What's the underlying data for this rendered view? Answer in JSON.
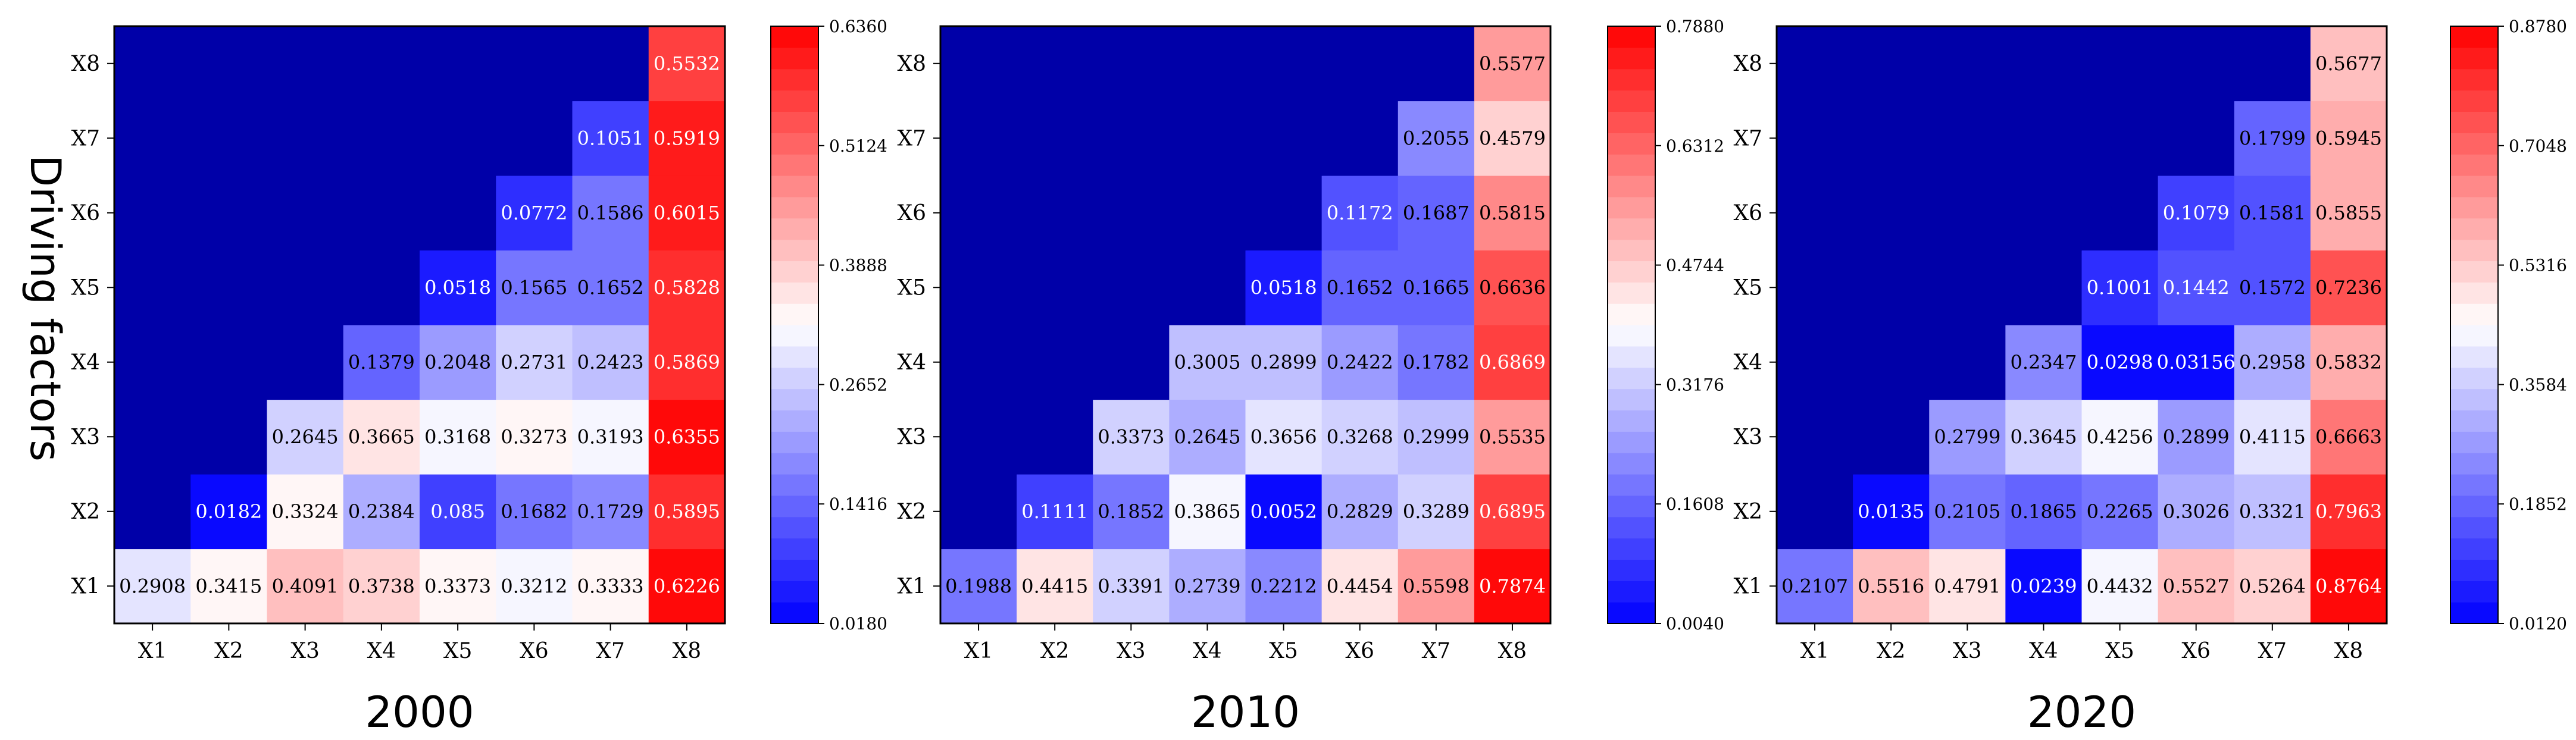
{
  "figure": {
    "ylabel": "Driving factors",
    "masked_cell_color": "#0000a8",
    "colormap": {
      "low": "#0000ff",
      "mid": "#ffffff",
      "high": "#ff0000",
      "levels": 28
    }
  },
  "chart_data": [
    {
      "type": "heatmap",
      "title": "2000",
      "xlabel": "",
      "ylabel": "Driving factors",
      "x_categories": [
        "X1",
        "X2",
        "X3",
        "X4",
        "X5",
        "X6",
        "X7",
        "X8"
      ],
      "y_categories": [
        "X1",
        "X2",
        "X3",
        "X4",
        "X5",
        "X6",
        "X7",
        "X8"
      ],
      "values": [
        [
          0.2908,
          0.3415,
          0.4091,
          0.3738,
          0.3373,
          0.3212,
          0.3333,
          0.6226
        ],
        [
          null,
          0.0182,
          0.3324,
          0.2384,
          0.085,
          0.1682,
          0.1729,
          0.5895
        ],
        [
          null,
          null,
          0.2645,
          0.3665,
          0.3168,
          0.3273,
          0.3193,
          0.6355
        ],
        [
          null,
          null,
          null,
          0.1379,
          0.2048,
          0.2731,
          0.2423,
          0.5869
        ],
        [
          null,
          null,
          null,
          null,
          0.0518,
          0.1565,
          0.1652,
          0.5828
        ],
        [
          null,
          null,
          null,
          null,
          null,
          0.0772,
          0.1586,
          0.6015
        ],
        [
          null,
          null,
          null,
          null,
          null,
          null,
          0.1051,
          0.5919
        ],
        [
          null,
          null,
          null,
          null,
          null,
          null,
          null,
          0.5532
        ]
      ],
      "labels": [
        [
          "0.2908",
          "0.3415",
          "0.4091",
          "0.3738",
          "0.3373",
          "0.3212",
          "0.3333",
          "0.6226"
        ],
        [
          null,
          "0.0182",
          "0.3324",
          "0.2384",
          "0.085",
          "0.1682",
          "0.1729",
          "0.5895"
        ],
        [
          null,
          null,
          "0.2645",
          "0.3665",
          "0.3168",
          "0.3273",
          "0.3193",
          "0.6355"
        ],
        [
          null,
          null,
          null,
          "0.1379",
          "0.2048",
          "0.2731",
          "0.2423",
          "0.5869"
        ],
        [
          null,
          null,
          null,
          null,
          "0.0518",
          "0.1565",
          "0.1652",
          "0.5828"
        ],
        [
          null,
          null,
          null,
          null,
          null,
          "0.0772",
          "0.1586",
          "0.6015"
        ],
        [
          null,
          null,
          null,
          null,
          null,
          null,
          "0.1051",
          "0.5919"
        ],
        [
          null,
          null,
          null,
          null,
          null,
          null,
          null,
          "0.5532"
        ]
      ],
      "colorbar": {
        "min": 0.018,
        "max": 0.636,
        "ticks": [
          "0.0180",
          "0.1416",
          "0.2652",
          "0.3888",
          "0.5124",
          "0.6360"
        ]
      }
    },
    {
      "type": "heatmap",
      "title": "2010",
      "xlabel": "",
      "ylabel": "",
      "x_categories": [
        "X1",
        "X2",
        "X3",
        "X4",
        "X5",
        "X6",
        "X7",
        "X8"
      ],
      "y_categories": [
        "X1",
        "X2",
        "X3",
        "X4",
        "X5",
        "X6",
        "X7",
        "X8"
      ],
      "values": [
        [
          0.1988,
          0.4415,
          0.3391,
          0.2739,
          0.2212,
          0.4454,
          0.5598,
          0.7874
        ],
        [
          null,
          0.1111,
          0.1852,
          0.3865,
          0.0052,
          0.2829,
          0.3289,
          0.6895
        ],
        [
          null,
          null,
          0.3373,
          0.2645,
          0.3656,
          0.3268,
          0.2999,
          0.5535
        ],
        [
          null,
          null,
          null,
          0.3005,
          0.2899,
          0.2422,
          0.1782,
          0.6869
        ],
        [
          null,
          null,
          null,
          null,
          0.0518,
          0.1652,
          0.1665,
          0.6636
        ],
        [
          null,
          null,
          null,
          null,
          null,
          0.1172,
          0.1687,
          0.5815
        ],
        [
          null,
          null,
          null,
          null,
          null,
          null,
          0.2055,
          0.4579
        ],
        [
          null,
          null,
          null,
          null,
          null,
          null,
          null,
          0.5577
        ]
      ],
      "labels": [
        [
          "0.1988",
          "0.4415",
          "0.3391",
          "0.2739",
          "0.2212",
          "0.4454",
          "0.5598",
          "0.7874"
        ],
        [
          null,
          "0.1111",
          "0.1852",
          "0.3865",
          "0.0052",
          "0.2829",
          "0.3289",
          "0.6895"
        ],
        [
          null,
          null,
          "0.3373",
          "0.2645",
          "0.3656",
          "0.3268",
          "0.2999",
          "0.5535"
        ],
        [
          null,
          null,
          null,
          "0.3005",
          "0.2899",
          "0.2422",
          "0.1782",
          "0.6869"
        ],
        [
          null,
          null,
          null,
          null,
          "0.0518",
          "0.1652",
          "0.1665",
          "0.6636"
        ],
        [
          null,
          null,
          null,
          null,
          null,
          "0.1172",
          "0.1687",
          "0.5815"
        ],
        [
          null,
          null,
          null,
          null,
          null,
          null,
          "0.2055",
          "0.4579"
        ],
        [
          null,
          null,
          null,
          null,
          null,
          null,
          null,
          "0.5577"
        ]
      ],
      "colorbar": {
        "min": 0.004,
        "max": 0.788,
        "ticks": [
          "0.0040",
          "0.1608",
          "0.3176",
          "0.4744",
          "0.6312",
          "0.7880"
        ]
      }
    },
    {
      "type": "heatmap",
      "title": "2020",
      "xlabel": "",
      "ylabel": "",
      "x_categories": [
        "X1",
        "X2",
        "X3",
        "X4",
        "X5",
        "X6",
        "X7",
        "X8"
      ],
      "y_categories": [
        "X1",
        "X2",
        "X3",
        "X4",
        "X5",
        "X6",
        "X7",
        "X8"
      ],
      "values": [
        [
          0.2107,
          0.5516,
          0.4791,
          0.0239,
          0.4432,
          0.5527,
          0.5264,
          0.8764
        ],
        [
          null,
          0.0135,
          0.2105,
          0.1865,
          0.2265,
          0.3026,
          0.3321,
          0.7963
        ],
        [
          null,
          null,
          0.2799,
          0.3645,
          0.4256,
          0.2899,
          0.4115,
          0.6663
        ],
        [
          null,
          null,
          null,
          0.2347,
          0.0298,
          0.03156,
          0.2958,
          0.5832
        ],
        [
          null,
          null,
          null,
          null,
          0.1001,
          0.1442,
          0.1572,
          0.7236
        ],
        [
          null,
          null,
          null,
          null,
          null,
          0.1079,
          0.1581,
          0.5855
        ],
        [
          null,
          null,
          null,
          null,
          null,
          null,
          0.1799,
          0.5945
        ],
        [
          null,
          null,
          null,
          null,
          null,
          null,
          null,
          0.5677
        ]
      ],
      "labels": [
        [
          "0.2107",
          "0.5516",
          "0.4791",
          "0.0239",
          "0.4432",
          "0.5527",
          "0.5264",
          "0.8764"
        ],
        [
          null,
          "0.0135",
          "0.2105",
          "0.1865",
          "0.2265",
          "0.3026",
          "0.3321",
          "0.7963"
        ],
        [
          null,
          null,
          "0.2799",
          "0.3645",
          "0.4256",
          "0.2899",
          "0.4115",
          "0.6663"
        ],
        [
          null,
          null,
          null,
          "0.2347",
          "0.0298",
          "0.03156",
          "0.2958",
          "0.5832"
        ],
        [
          null,
          null,
          null,
          null,
          "0.1001",
          "0.1442",
          "0.1572",
          "0.7236"
        ],
        [
          null,
          null,
          null,
          null,
          null,
          "0.1079",
          "0.1581",
          "0.5855"
        ],
        [
          null,
          null,
          null,
          null,
          null,
          null,
          "0.1799",
          "0.5945"
        ],
        [
          null,
          null,
          null,
          null,
          null,
          null,
          null,
          "0.5677"
        ]
      ],
      "colorbar": {
        "min": 0.012,
        "max": 0.878,
        "ticks": [
          "0.0120",
          "0.1852",
          "0.3584",
          "0.5316",
          "0.7048",
          "0.8780"
        ]
      }
    }
  ]
}
